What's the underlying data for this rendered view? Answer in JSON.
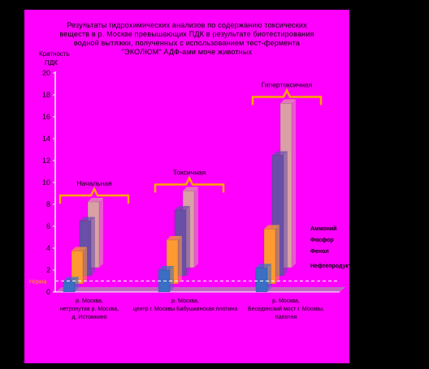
{
  "title": {
    "line1": "Результаты гидрохимических анализов по содержанию токсических",
    "line2": "веществ в р. Москве превышающих ПДК в результате биотестирования",
    "line3": "водной вытяжки, полученных с использованием тест-фермента",
    "line4": "\"ЭКОЛЮМ\" АДФ-ами моче животных"
  },
  "colors": {
    "background": "#ff00ff",
    "frame": "#000000",
    "bracket": "#ffa500",
    "blue": "#3a6fc4",
    "orange": "#ff9a33",
    "purple": "#6a4fa8",
    "pink": "#d9a1a6",
    "floor": "#b57bb5"
  },
  "chart_data": {
    "type": "bar",
    "ylabel": "Кратность ПДК",
    "ylim": [
      0,
      20
    ],
    "yticks": [
      0,
      2,
      4,
      6,
      8,
      10,
      12,
      14,
      16,
      18,
      20
    ],
    "reference_label": "Норма",
    "reference_value": 1,
    "categories": [
      "р. Москва, нетронутая р. Москва, д. Истомкино",
      "р. Москва, центр г. Москвы Бабушкинская плотина",
      "р. Москва, Бесединский мост г. Москвы, Капотня"
    ],
    "stages": [
      "Начальная",
      "Токсичная",
      "Гипертоксичная"
    ],
    "series": [
      {
        "name": "Нефтепродукты",
        "values": [
          1,
          2,
          2.2
        ]
      },
      {
        "name": "Фенол",
        "values": [
          3,
          4,
          5
        ]
      },
      {
        "name": "Фосфор",
        "values": [
          5,
          6,
          11
        ]
      },
      {
        "name": "Аммоний",
        "values": [
          6,
          7,
          15
        ]
      }
    ],
    "grid": false,
    "legend": "right"
  }
}
